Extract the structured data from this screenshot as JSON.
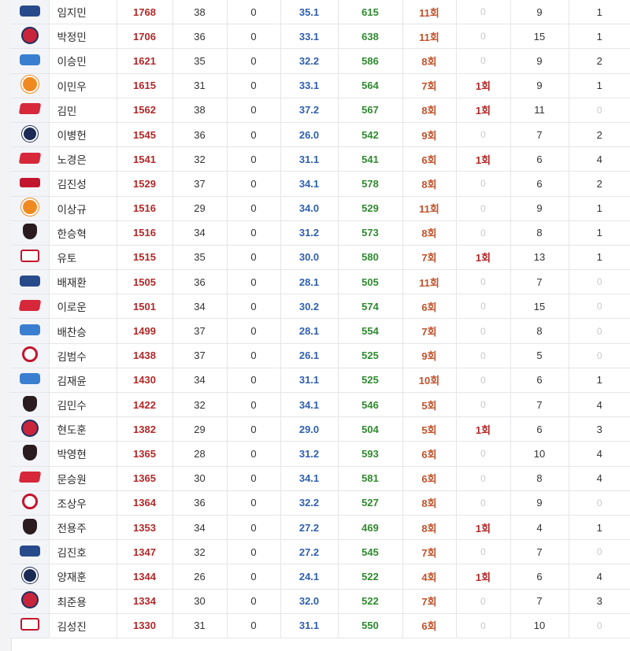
{
  "colors": {
    "score": "#b32828",
    "pct": "#2f5fb0",
    "green": "#2f8a2f",
    "count": "#c0522b",
    "zero": "#c9c9cc"
  },
  "rows": [
    {
      "logo": "dinos-logo-icon",
      "name": "임지민",
      "c1": "1768",
      "c2": "38",
      "c3": "0",
      "c4": "35.1",
      "c5": "615",
      "c6": "11회",
      "c7": "0",
      "c8": "9",
      "c9": "1"
    },
    {
      "logo": "giants-logo-icon",
      "name": "박정민",
      "c1": "1706",
      "c2": "36",
      "c3": "0",
      "c4": "33.1",
      "c5": "638",
      "c6": "11회",
      "c7": "0",
      "c8": "15",
      "c9": "1"
    },
    {
      "logo": "lions-logo-icon",
      "name": "이승민",
      "c1": "1621",
      "c2": "35",
      "c3": "0",
      "c4": "32.2",
      "c5": "586",
      "c6": "8회",
      "c7": "0",
      "c8": "9",
      "c9": "2"
    },
    {
      "logo": "eagles-logo-icon",
      "name": "이민우",
      "c1": "1615",
      "c2": "31",
      "c3": "0",
      "c4": "33.1",
      "c5": "564",
      "c6": "7회",
      "c7": "1회",
      "c8": "9",
      "c9": "1"
    },
    {
      "logo": "landers-logo-icon",
      "name": "김민",
      "c1": "1562",
      "c2": "38",
      "c3": "0",
      "c4": "37.2",
      "c5": "567",
      "c6": "8회",
      "c7": "1회",
      "c8": "11",
      "c9": "0"
    },
    {
      "logo": "bears-logo-icon",
      "name": "이병헌",
      "c1": "1545",
      "c2": "36",
      "c3": "0",
      "c4": "26.0",
      "c5": "542",
      "c6": "9회",
      "c7": "0",
      "c8": "7",
      "c9": "2"
    },
    {
      "logo": "landers-logo-icon",
      "name": "노경은",
      "c1": "1541",
      "c2": "32",
      "c3": "0",
      "c4": "31.1",
      "c5": "541",
      "c6": "6회",
      "c7": "1회",
      "c8": "6",
      "c9": "4"
    },
    {
      "logo": "twins-logo-icon",
      "name": "김진성",
      "c1": "1529",
      "c2": "37",
      "c3": "0",
      "c4": "34.1",
      "c5": "578",
      "c6": "8회",
      "c7": "0",
      "c8": "6",
      "c9": "2"
    },
    {
      "logo": "eagles-logo-icon",
      "name": "이상규",
      "c1": "1516",
      "c2": "29",
      "c3": "0",
      "c4": "34.0",
      "c5": "529",
      "c6": "11회",
      "c7": "0",
      "c8": "9",
      "c9": "1"
    },
    {
      "logo": "heroes-logo-icon",
      "name": "한승혁",
      "c1": "1516",
      "c2": "34",
      "c3": "0",
      "c4": "31.2",
      "c5": "573",
      "c6": "8회",
      "c7": "0",
      "c8": "8",
      "c9": "1"
    },
    {
      "logo": "wiz-logo-icon",
      "name": "유토",
      "c1": "1515",
      "c2": "35",
      "c3": "0",
      "c4": "30.0",
      "c5": "580",
      "c6": "7회",
      "c7": "1회",
      "c8": "13",
      "c9": "1"
    },
    {
      "logo": "dinos-logo-icon",
      "name": "배재환",
      "c1": "1505",
      "c2": "36",
      "c3": "0",
      "c4": "28.1",
      "c5": "505",
      "c6": "11회",
      "c7": "0",
      "c8": "7",
      "c9": "0"
    },
    {
      "logo": "landers-logo-icon",
      "name": "이로운",
      "c1": "1501",
      "c2": "34",
      "c3": "0",
      "c4": "30.2",
      "c5": "574",
      "c6": "6회",
      "c7": "0",
      "c8": "15",
      "c9": "0"
    },
    {
      "logo": "lions-logo-icon",
      "name": "배찬승",
      "c1": "1499",
      "c2": "37",
      "c3": "0",
      "c4": "28.1",
      "c5": "554",
      "c6": "7회",
      "c7": "0",
      "c8": "8",
      "c9": "0"
    },
    {
      "logo": "tigers-logo-icon",
      "name": "김범수",
      "c1": "1438",
      "c2": "37",
      "c3": "0",
      "c4": "26.1",
      "c5": "525",
      "c6": "9회",
      "c7": "0",
      "c8": "5",
      "c9": "0"
    },
    {
      "logo": "lions-logo-icon",
      "name": "김재윤",
      "c1": "1430",
      "c2": "34",
      "c3": "0",
      "c4": "31.1",
      "c5": "525",
      "c6": "10회",
      "c7": "0",
      "c8": "6",
      "c9": "1"
    },
    {
      "logo": "heroes-logo-icon",
      "name": "김민수",
      "c1": "1422",
      "c2": "32",
      "c3": "0",
      "c4": "34.1",
      "c5": "546",
      "c6": "5회",
      "c7": "0",
      "c8": "7",
      "c9": "4"
    },
    {
      "logo": "giants-logo-icon",
      "name": "현도훈",
      "c1": "1382",
      "c2": "29",
      "c3": "0",
      "c4": "29.0",
      "c5": "504",
      "c6": "5회",
      "c7": "1회",
      "c8": "6",
      "c9": "3"
    },
    {
      "logo": "heroes-logo-icon",
      "name": "박영현",
      "c1": "1365",
      "c2": "28",
      "c3": "0",
      "c4": "31.2",
      "c5": "593",
      "c6": "6회",
      "c7": "0",
      "c8": "10",
      "c9": "4"
    },
    {
      "logo": "landers-logo-icon",
      "name": "문승원",
      "c1": "1365",
      "c2": "30",
      "c3": "0",
      "c4": "34.1",
      "c5": "581",
      "c6": "6회",
      "c7": "0",
      "c8": "8",
      "c9": "4"
    },
    {
      "logo": "tigers-logo-icon",
      "name": "조상우",
      "c1": "1364",
      "c2": "36",
      "c3": "0",
      "c4": "32.2",
      "c5": "527",
      "c6": "8회",
      "c7": "0",
      "c8": "9",
      "c9": "0"
    },
    {
      "logo": "heroes-logo-icon",
      "name": "전용주",
      "c1": "1353",
      "c2": "34",
      "c3": "0",
      "c4": "27.2",
      "c5": "469",
      "c6": "8회",
      "c7": "1회",
      "c8": "4",
      "c9": "1"
    },
    {
      "logo": "dinos-logo-icon",
      "name": "김진호",
      "c1": "1347",
      "c2": "32",
      "c3": "0",
      "c4": "27.2",
      "c5": "545",
      "c6": "7회",
      "c7": "0",
      "c8": "7",
      "c9": "0"
    },
    {
      "logo": "bears-logo-icon",
      "name": "양재훈",
      "c1": "1344",
      "c2": "26",
      "c3": "0",
      "c4": "24.1",
      "c5": "522",
      "c6": "4회",
      "c7": "1회",
      "c8": "6",
      "c9": "4"
    },
    {
      "logo": "giants-logo-icon",
      "name": "최준용",
      "c1": "1334",
      "c2": "30",
      "c3": "0",
      "c4": "32.0",
      "c5": "522",
      "c6": "7회",
      "c7": "0",
      "c8": "7",
      "c9": "3"
    },
    {
      "logo": "wiz-logo-icon",
      "name": "김성진",
      "c1": "1330",
      "c2": "31",
      "c3": "0",
      "c4": "31.1",
      "c5": "550",
      "c6": "6회",
      "c7": "0",
      "c8": "10",
      "c9": "0"
    }
  ]
}
